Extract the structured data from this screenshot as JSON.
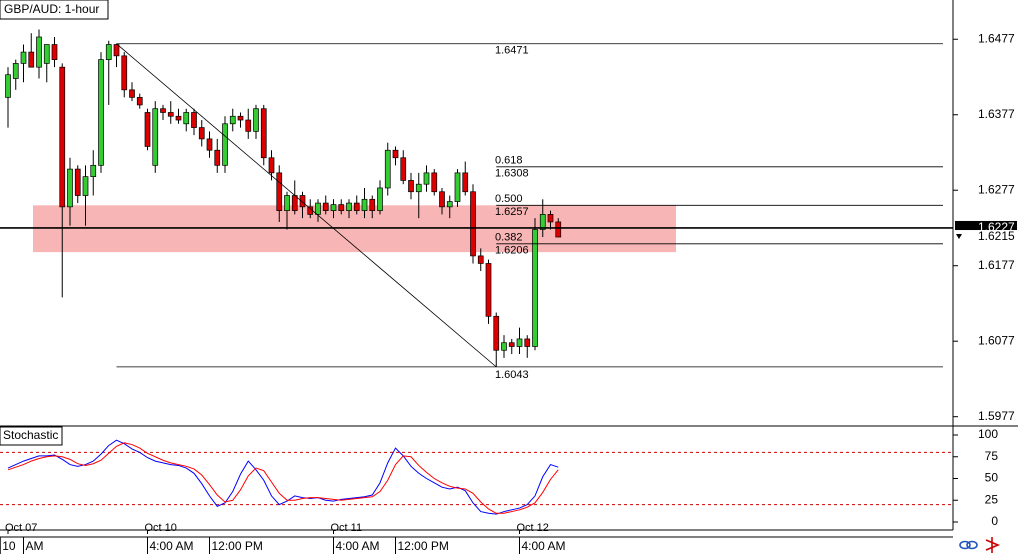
{
  "chart_data": {
    "type": "candlestick",
    "title": "GBP/AUD: 1-hour",
    "ylim": [
      1.5966,
      1.6529
    ],
    "yticks": [
      1.6477,
      1.6377,
      1.6277,
      1.6177,
      1.6077,
      1.5977
    ],
    "up_color": "#33cc33",
    "down_color": "#dd0000",
    "candles": {
      "open": [
        1.64,
        1.6425,
        1.6445,
        1.646,
        1.644,
        1.6445,
        1.647,
        1.644,
        1.6255,
        1.6305,
        1.627,
        1.6295,
        1.631,
        1.645,
        1.647,
        1.6455,
        1.641,
        1.64,
        1.638,
        1.631,
        1.6385,
        1.638,
        1.6375,
        1.6365,
        1.638,
        1.636,
        1.6345,
        1.633,
        1.631,
        1.6365,
        1.6375,
        1.637,
        1.6355,
        1.6385,
        1.632,
        1.63,
        1.625,
        1.627,
        1.627,
        1.6255,
        1.6245,
        1.626,
        1.625,
        1.6258,
        1.625,
        1.626,
        1.625,
        1.6265,
        1.625,
        1.628,
        1.633,
        1.632,
        1.629,
        1.6275,
        1.6285,
        1.63,
        1.6275,
        1.6255,
        1.6262,
        1.63,
        1.6275,
        1.619,
        1.618,
        1.611,
        1.6065,
        1.6075,
        1.607,
        1.608,
        1.607,
        1.6225,
        1.6245,
        1.6235
      ],
      "high": [
        1.644,
        1.645,
        1.647,
        1.6485,
        1.649,
        1.647,
        1.648,
        1.6445,
        1.632,
        1.631,
        1.631,
        1.633,
        1.646,
        1.6475,
        1.6471,
        1.646,
        1.642,
        1.6405,
        1.6385,
        1.6395,
        1.639,
        1.6395,
        1.6385,
        1.6385,
        1.6385,
        1.637,
        1.6355,
        1.6345,
        1.6375,
        1.6385,
        1.638,
        1.6385,
        1.639,
        1.639,
        1.633,
        1.631,
        1.6275,
        1.629,
        1.6275,
        1.6265,
        1.6265,
        1.627,
        1.6265,
        1.6265,
        1.6265,
        1.627,
        1.628,
        1.627,
        1.629,
        1.634,
        1.6335,
        1.633,
        1.63,
        1.63,
        1.631,
        1.6305,
        1.628,
        1.627,
        1.6305,
        1.6315,
        1.6285,
        1.62,
        1.6185,
        1.6115,
        1.6085,
        1.608,
        1.6095,
        1.6085,
        1.624,
        1.6265,
        1.625,
        1.624
      ],
      "low": [
        1.636,
        1.641,
        1.642,
        1.644,
        1.6425,
        1.642,
        1.644,
        1.6135,
        1.623,
        1.626,
        1.623,
        1.627,
        1.63,
        1.639,
        1.644,
        1.64,
        1.6395,
        1.6385,
        1.633,
        1.63,
        1.637,
        1.6365,
        1.6365,
        1.6355,
        1.635,
        1.6335,
        1.632,
        1.63,
        1.63,
        1.6355,
        1.636,
        1.6345,
        1.6345,
        1.631,
        1.629,
        1.6235,
        1.6225,
        1.6245,
        1.624,
        1.624,
        1.6235,
        1.6245,
        1.624,
        1.6245,
        1.624,
        1.6245,
        1.624,
        1.624,
        1.6245,
        1.627,
        1.631,
        1.6285,
        1.6265,
        1.624,
        1.6275,
        1.627,
        1.6245,
        1.624,
        1.6255,
        1.627,
        1.618,
        1.617,
        1.61,
        1.6043,
        1.6055,
        1.606,
        1.606,
        1.6055,
        1.6065,
        1.6215,
        1.6225,
        1.6215
      ],
      "close": [
        1.643,
        1.6445,
        1.646,
        1.644,
        1.648,
        1.647,
        1.645,
        1.6255,
        1.6305,
        1.627,
        1.6295,
        1.631,
        1.645,
        1.647,
        1.6455,
        1.641,
        1.64,
        1.639,
        1.6335,
        1.6385,
        1.638,
        1.6375,
        1.637,
        1.638,
        1.636,
        1.6345,
        1.633,
        1.631,
        1.6365,
        1.6375,
        1.637,
        1.6355,
        1.6385,
        1.632,
        1.63,
        1.625,
        1.627,
        1.625,
        1.6255,
        1.6245,
        1.626,
        1.625,
        1.6258,
        1.625,
        1.626,
        1.625,
        1.6265,
        1.625,
        1.628,
        1.633,
        1.632,
        1.629,
        1.6275,
        1.6285,
        1.63,
        1.6275,
        1.6255,
        1.6262,
        1.63,
        1.6275,
        1.619,
        1.618,
        1.611,
        1.6065,
        1.6075,
        1.607,
        1.608,
        1.607,
        1.6225,
        1.6245,
        1.6235,
        1.6215
      ]
    },
    "fibonacci": {
      "high": 1.6471,
      "low": 1.6043,
      "levels": [
        {
          "ratio": "0.618",
          "price": 1.6308
        },
        {
          "ratio": "0.500",
          "price": 1.6257
        },
        {
          "ratio": "0.382",
          "price": 1.6206
        }
      ]
    },
    "zone": {
      "low": 1.6195,
      "high": 1.6257,
      "color": "#f7a8a8"
    },
    "level_line": 1.6227,
    "price_labels": [
      1.6227,
      1.6215
    ],
    "indicator": {
      "title": "Stochastic",
      "ylim": [
        -9.2,
        109.2
      ],
      "yticks": [
        100,
        75,
        50,
        25,
        0
      ],
      "levels": [
        80,
        20
      ],
      "series": [
        {
          "color": "#0000ff",
          "values": [
            62,
            66,
            70,
            73,
            76,
            76,
            77,
            72,
            66,
            64,
            66,
            70,
            78,
            88,
            94,
            90,
            84,
            80,
            74,
            70,
            68,
            66,
            65,
            62,
            56,
            44,
            30,
            18,
            22,
            35,
            55,
            70,
            60,
            48,
            30,
            20,
            24,
            30,
            28,
            27,
            28,
            25,
            24,
            26,
            27,
            28,
            29,
            31,
            45,
            68,
            85,
            76,
            64,
            56,
            50,
            45,
            40,
            38,
            40,
            36,
            22,
            12,
            10,
            9,
            12,
            14,
            16,
            20,
            30,
            52,
            66,
            63
          ]
        },
        {
          "color": "#ff0000",
          "values": [
            60,
            63,
            66,
            70,
            73,
            75,
            76,
            75,
            72,
            67,
            65,
            67,
            71,
            79,
            87,
            91,
            89,
            85,
            79,
            75,
            71,
            68,
            66,
            64,
            61,
            54,
            43,
            31,
            23,
            25,
            37,
            53,
            62,
            59,
            46,
            33,
            25,
            25,
            27,
            28,
            28,
            27,
            26,
            25,
            26,
            27,
            28,
            29,
            35,
            48,
            66,
            76,
            75,
            65,
            57,
            50,
            45,
            41,
            39,
            38,
            33,
            23,
            15,
            10,
            10,
            12,
            14,
            17,
            22,
            34,
            49,
            60
          ]
        }
      ]
    },
    "x_labels_top": [
      {
        "value": 0,
        "label": "Oct 07"
      },
      {
        "value": 18,
        "label": "Oct 10"
      },
      {
        "value": 42,
        "label": "Oct 11"
      },
      {
        "value": 66,
        "label": "Oct 12"
      }
    ],
    "x_labels_bottom": [
      {
        "value": -1,
        "label": "10"
      },
      {
        "value": 2,
        "label": "AM"
      },
      {
        "value": 18,
        "label": "4:00 AM"
      },
      {
        "value": 26,
        "label": "12:00 PM"
      },
      {
        "value": 42,
        "label": "4:00 AM"
      },
      {
        "value": 50,
        "label": "12:00 PM"
      },
      {
        "value": 66,
        "label": "4:00 AM"
      }
    ]
  }
}
